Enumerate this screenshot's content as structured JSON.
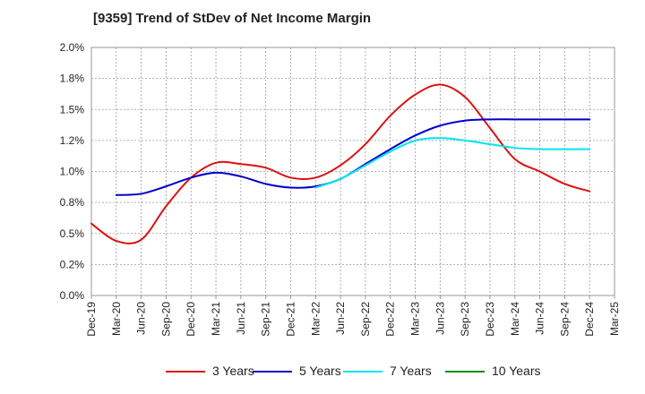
{
  "chart_data": {
    "type": "line",
    "title": "[9359]  Trend of StDev of Net Income Margin",
    "xlabel": "",
    "ylabel": "",
    "x": [
      "Dec-19",
      "Mar-20",
      "Jun-20",
      "Sep-20",
      "Dec-20",
      "Mar-21",
      "Jun-21",
      "Sep-21",
      "Dec-21",
      "Mar-22",
      "Jun-22",
      "Sep-22",
      "Dec-22",
      "Mar-23",
      "Jun-23",
      "Sep-23",
      "Dec-23",
      "Mar-24",
      "Jun-24",
      "Sep-24",
      "Dec-24",
      "Mar-25"
    ],
    "ylim": [
      0,
      2.0
    ],
    "yticks": [
      "0.0%",
      "0.2%",
      "0.5%",
      "0.8%",
      "1.0%",
      "1.2%",
      "1.5%",
      "1.8%",
      "2.0%"
    ],
    "grid": true,
    "legend_position": "bottom",
    "series": [
      {
        "name": "3 Years",
        "color": "#dd1111",
        "values": [
          0.58,
          0.44,
          0.45,
          0.72,
          0.95,
          1.07,
          1.06,
          1.03,
          0.95,
          0.95,
          1.05,
          1.22,
          1.45,
          1.62,
          1.7,
          1.6,
          1.35,
          1.1,
          1.0,
          0.9,
          0.84,
          null
        ]
      },
      {
        "name": "5 Years",
        "color": "#0000cc",
        "values": [
          null,
          0.81,
          0.82,
          0.88,
          0.95,
          0.99,
          0.96,
          0.9,
          0.87,
          0.88,
          0.94,
          1.06,
          1.18,
          1.29,
          1.37,
          1.41,
          1.42,
          1.42,
          1.42,
          1.42,
          1.42,
          null
        ]
      },
      {
        "name": "7 Years",
        "color": "#00e5ee",
        "values": [
          null,
          null,
          null,
          null,
          null,
          null,
          null,
          null,
          null,
          0.87,
          0.94,
          1.05,
          1.16,
          1.25,
          1.27,
          1.25,
          1.22,
          1.19,
          1.18,
          1.18,
          1.18,
          null
        ]
      },
      {
        "name": "10 Years",
        "color": "#1a8a1a",
        "values": [
          null,
          null,
          null,
          null,
          null,
          null,
          null,
          null,
          null,
          null,
          null,
          null,
          null,
          null,
          null,
          null,
          null,
          null,
          null,
          null,
          null,
          null
        ]
      }
    ]
  }
}
